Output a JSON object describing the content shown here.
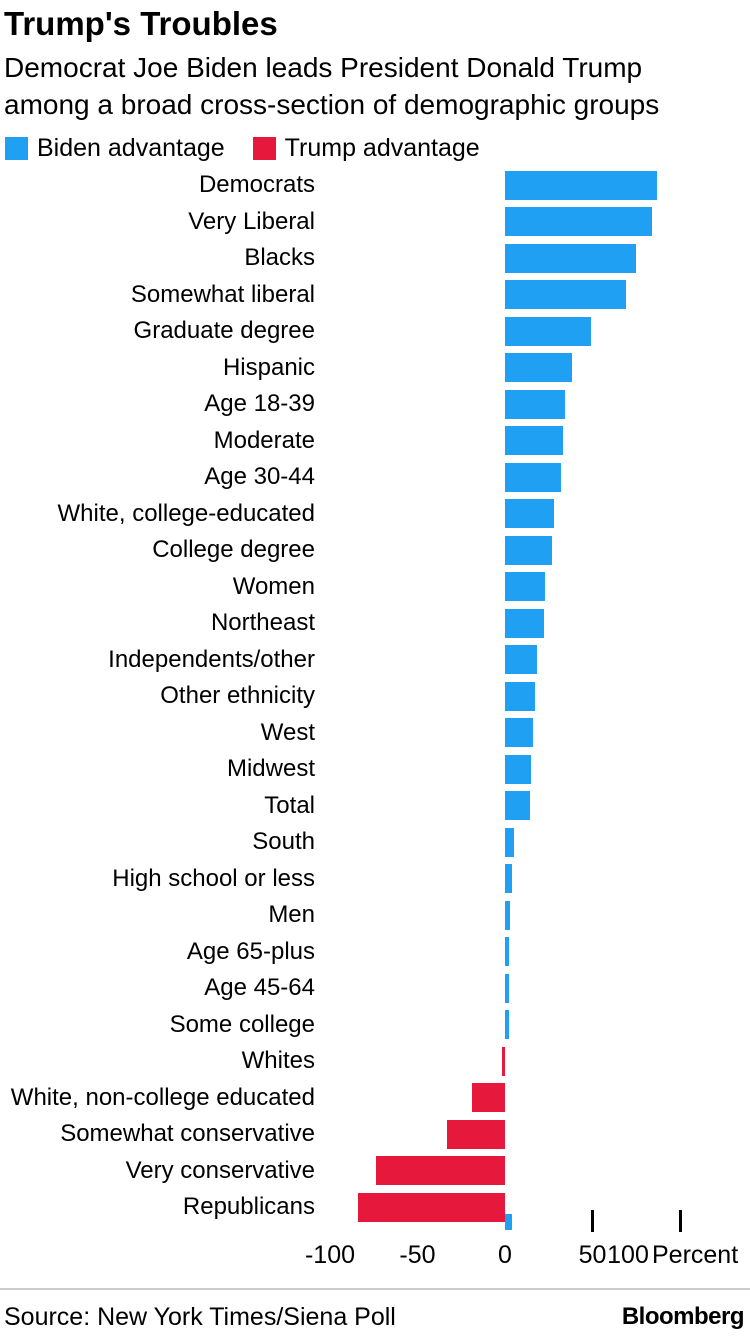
{
  "header": {
    "title": "Trump's Troubles",
    "subtitle": "Democrat Joe Biden leads President Donald Trump among a broad cross-section of demographic groups"
  },
  "legend": {
    "items": [
      {
        "label": "Biden advantage"
      },
      {
        "label": "Trump advantage"
      }
    ]
  },
  "chart_data": {
    "type": "bar",
    "orientation": "horizontal",
    "title": "Trump's Troubles",
    "unit": "Percent",
    "xlim": [
      -100,
      100
    ],
    "x_ticks": [
      -100,
      -50,
      0,
      50,
      100
    ],
    "positive_label": "Biden advantage",
    "negative_label": "Trump advantage",
    "positive_color": "#1FA0F2",
    "negative_color": "#E6193C",
    "categories": [
      "Democrats",
      "Very Liberal",
      "Blacks",
      "Somewhat liberal",
      "Graduate degree",
      "Hispanic",
      "Age 18-39",
      "Moderate",
      "Age 30-44",
      "White, college-educated",
      "College degree",
      "Women",
      "Northeast",
      "Independents/other",
      "Other ethnicity",
      "West",
      "Midwest",
      "Total",
      "South",
      "High school or less",
      "Men",
      "Age 65-plus",
      "Age 45-64",
      "Some college",
      "Whites",
      "White, non-college educated",
      "Somewhat conservative",
      "Very conservative",
      "Republicans"
    ],
    "values": [
      87,
      84,
      75,
      69,
      49,
      38,
      34,
      33,
      32,
      28,
      27,
      23,
      22,
      18,
      17,
      16,
      15,
      14,
      5,
      4,
      3,
      2,
      2,
      2,
      -2,
      -19,
      -33,
      -74,
      -84
    ]
  },
  "footer": {
    "source": "Source: New York Times/Siena Poll",
    "brand": "Bloomberg"
  }
}
